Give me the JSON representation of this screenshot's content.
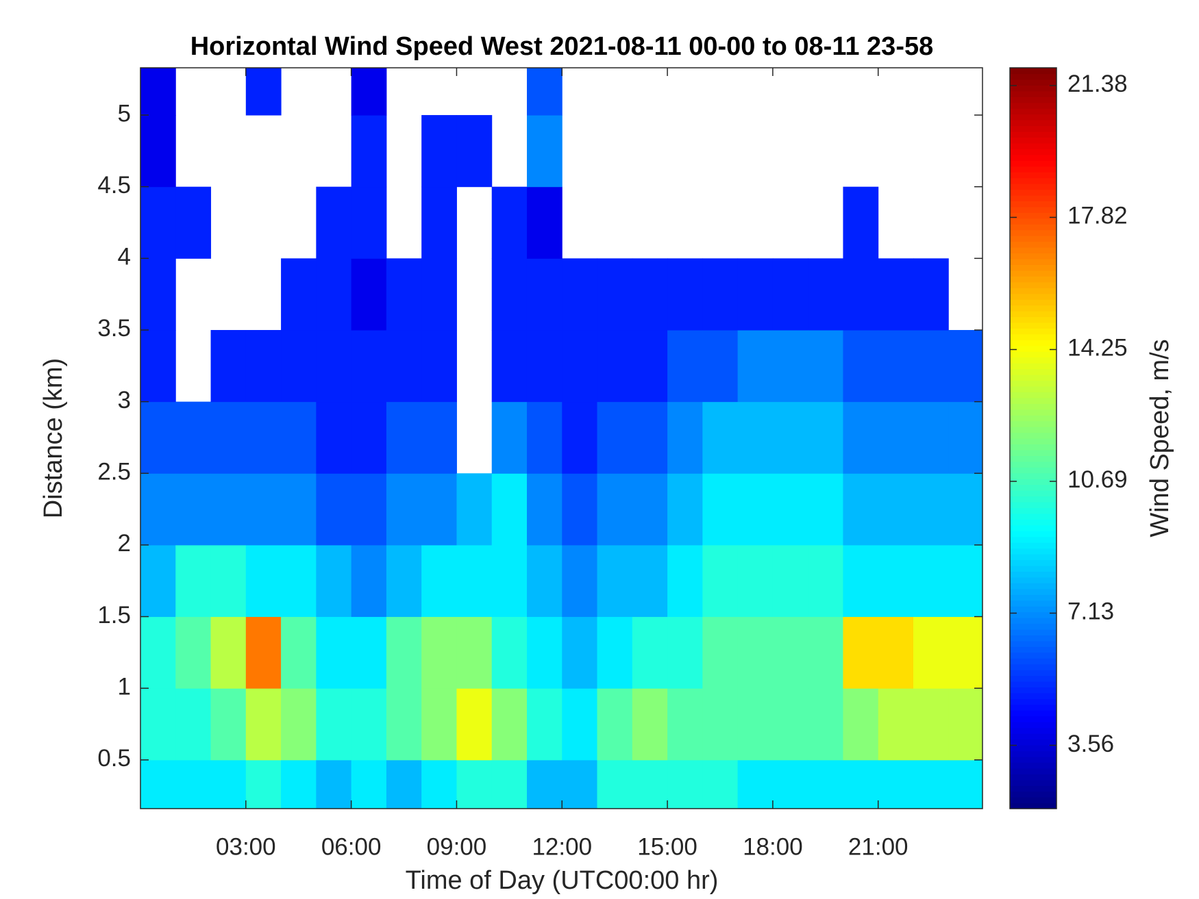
{
  "chart_data": {
    "type": "heatmap",
    "title": "Horizontal Wind Speed West 2021-08-11 00-00 to 08-11 23-58",
    "x_label": "Time of Day (UTC00:00 hr)",
    "y_label": "Distance (km)",
    "colorbar_label": "Wind Speed, m/s",
    "colormap": "jet",
    "x": [
      0.5,
      1.5,
      2.5,
      3.5,
      4.5,
      5.5,
      6.5,
      7.5,
      8.5,
      9.5,
      10.5,
      11.5,
      12.5,
      13.5,
      14.5,
      15.5,
      16.5,
      17.5,
      18.5,
      19.5,
      20.5,
      21.5,
      22.5,
      23.5
    ],
    "y": [
      0.25,
      0.75,
      1.25,
      1.75,
      2.25,
      2.75,
      3.25,
      3.75,
      4.25,
      4.75,
      5.25
    ],
    "values": [
      [
        9,
        10,
        10,
        8,
        7,
        6,
        5,
        5,
        5,
        4,
        4
      ],
      [
        9,
        10,
        11,
        10,
        7,
        6,
        null,
        null,
        5,
        null,
        null
      ],
      [
        9,
        11,
        13,
        10,
        7,
        6,
        5,
        null,
        null,
        null,
        null
      ],
      [
        10,
        13,
        17,
        9,
        7,
        6,
        5,
        null,
        null,
        null,
        5
      ],
      [
        9,
        12,
        11,
        9,
        7,
        6,
        5,
        5,
        null,
        null,
        null
      ],
      [
        8,
        10,
        9,
        8,
        6,
        5,
        5,
        5,
        5,
        null,
        null
      ],
      [
        9,
        10,
        9,
        7,
        6,
        5,
        5,
        4,
        5,
        5,
        4
      ],
      [
        8,
        11,
        11,
        8,
        7,
        6,
        5,
        5,
        null,
        null,
        null
      ],
      [
        9,
        12,
        12,
        9,
        7,
        6,
        5,
        5,
        5,
        5,
        null
      ],
      [
        10,
        14,
        12,
        9,
        8,
        null,
        null,
        null,
        null,
        5,
        null
      ],
      [
        10,
        12,
        10,
        9,
        9,
        7,
        5,
        5,
        5,
        null,
        null
      ],
      [
        8,
        10,
        9,
        8,
        7,
        6,
        5,
        5,
        4,
        7,
        6
      ],
      [
        8,
        9,
        8,
        7,
        6,
        5,
        5,
        5,
        null,
        null,
        null
      ],
      [
        10,
        11,
        9,
        8,
        7,
        6,
        5,
        5,
        null,
        null,
        null
      ],
      [
        10,
        12,
        10,
        8,
        7,
        6,
        5,
        5,
        null,
        null,
        null
      ],
      [
        10,
        11,
        10,
        9,
        8,
        7,
        6,
        5,
        null,
        null,
        null
      ],
      [
        10,
        11,
        11,
        10,
        9,
        8,
        6,
        5,
        null,
        null,
        null
      ],
      [
        9,
        11,
        11,
        10,
        9,
        8,
        7,
        5,
        null,
        null,
        null
      ],
      [
        9,
        11,
        11,
        10,
        9,
        8,
        7,
        5,
        null,
        null,
        null
      ],
      [
        9,
        11,
        11,
        10,
        9,
        8,
        7,
        5,
        null,
        null,
        null
      ],
      [
        9,
        12,
        15,
        9,
        8,
        7,
        6,
        5,
        5,
        null,
        null
      ],
      [
        9,
        13,
        15,
        9,
        8,
        7,
        6,
        5,
        null,
        null,
        null
      ],
      [
        9,
        13,
        14,
        9,
        8,
        7,
        6,
        5,
        null,
        null,
        null
      ],
      [
        9,
        13,
        14,
        9,
        8,
        7,
        6,
        null,
        null,
        null,
        null
      ]
    ],
    "xlim": [
      0,
      23.97
    ],
    "ylim": [
      0.16,
      5.33
    ],
    "clim": [
      1.85,
      21.86
    ],
    "xticks": [
      {
        "value": 3,
        "label": "03:00"
      },
      {
        "value": 6,
        "label": "06:00"
      },
      {
        "value": 9,
        "label": "09:00"
      },
      {
        "value": 12,
        "label": "12:00"
      },
      {
        "value": 15,
        "label": "15:00"
      },
      {
        "value": 18,
        "label": "18:00"
      },
      {
        "value": 21,
        "label": "21:00"
      }
    ],
    "yticks": [
      0.5,
      1,
      1.5,
      2,
      2.5,
      3,
      3.5,
      4,
      4.5,
      5
    ],
    "cticks": [
      3.56,
      7.13,
      10.69,
      14.25,
      17.82,
      21.38
    ]
  }
}
